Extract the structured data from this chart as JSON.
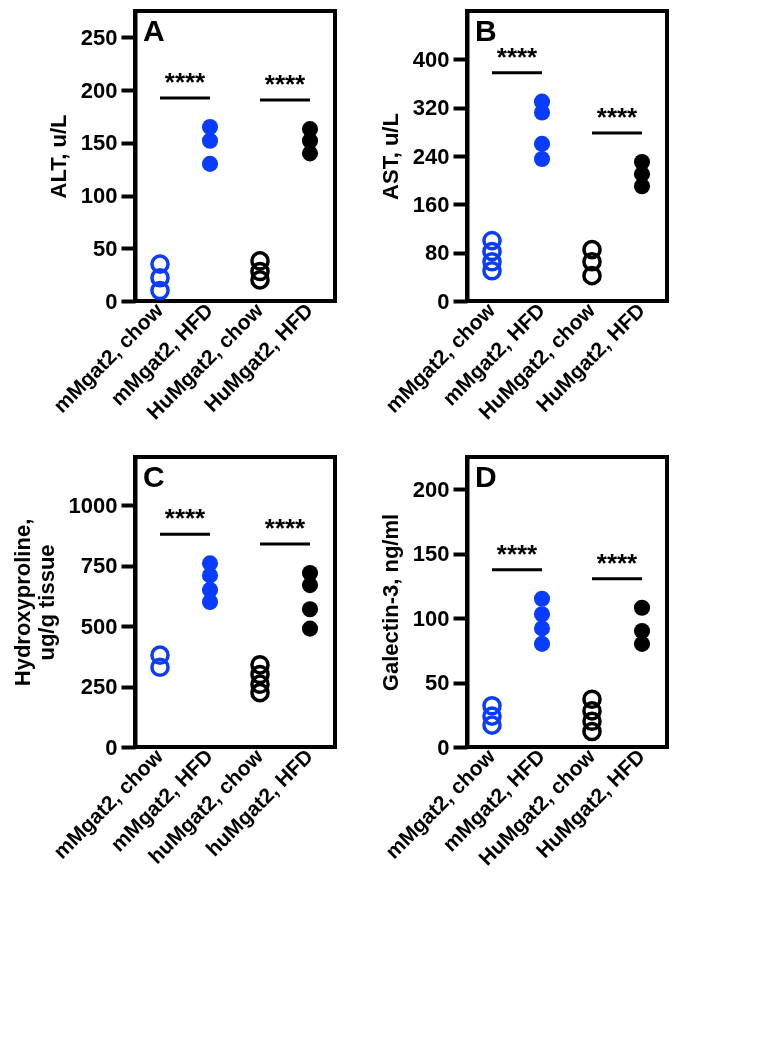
{
  "chart_data": [
    {
      "type": "scatter",
      "title": "A",
      "ylabel": "ALT, u/L",
      "categories": [
        "mMgat2, chow",
        "mMgat2, HFD",
        "HuMgat2, chow",
        "HuMgat2, HFD"
      ],
      "ylim": [
        0,
        275
      ],
      "yticks": [
        0,
        50,
        100,
        150,
        200,
        250
      ],
      "marker": "circle",
      "annotations": [
        "****",
        "****"
      ],
      "series": [
        {
          "color": "#0a3cff",
          "x": [
            "mMgat2, chow",
            "mMgat2, chow",
            "mMgat2, chow"
          ],
          "values": [
            35,
            22,
            10
          ]
        },
        {
          "color": "#0a3cff",
          "x": [
            "mMgat2, HFD",
            "mMgat2, HFD",
            "mMgat2, HFD"
          ],
          "values": [
            165,
            152,
            130
          ]
        },
        {
          "color": "#000000",
          "x": [
            "HuMgat2, chow",
            "HuMgat2, chow",
            "HuMgat2, chow"
          ],
          "values": [
            38,
            28,
            20
          ]
        },
        {
          "color": "#000000",
          "x": [
            "HuMgat2, HFD",
            "HuMgat2, HFD",
            "HuMgat2, HFD"
          ],
          "values": [
            163,
            152,
            140
          ]
        }
      ]
    },
    {
      "type": "scatter",
      "title": "B",
      "ylabel": "AST, u/L",
      "categories": [
        "mMgat2, chow",
        "mMgat2, HFD",
        "HuMgat2, chow",
        "HuMgat2, HFD"
      ],
      "ylim": [
        0,
        480
      ],
      "yticks": [
        0,
        80,
        160,
        240,
        320,
        400
      ],
      "marker": "circle",
      "annotations": [
        "****",
        "****"
      ],
      "series": [
        {
          "color": "#0a3cff",
          "x": [
            "mMgat2, chow",
            "mMgat2, chow",
            "mMgat2, chow",
            "mMgat2, chow"
          ],
          "values": [
            100,
            82,
            65,
            50
          ]
        },
        {
          "color": "#0a3cff",
          "x": [
            "mMgat2, HFD",
            "mMgat2, HFD",
            "mMgat2, HFD",
            "mMgat2, HFD"
          ],
          "values": [
            330,
            312,
            260,
            235
          ]
        },
        {
          "color": "#000000",
          "x": [
            "HuMgat2, chow",
            "HuMgat2, chow",
            "HuMgat2, chow"
          ],
          "values": [
            85,
            65,
            42
          ]
        },
        {
          "color": "#000000",
          "x": [
            "HuMgat2, HFD",
            "HuMgat2, HFD",
            "HuMgat2, HFD"
          ],
          "values": [
            230,
            210,
            190
          ]
        }
      ]
    },
    {
      "type": "scatter",
      "title": "C",
      "ylabel": "Hydroxyproline,\nug/g tissue",
      "categories": [
        "mMgat2, chow",
        "mMgat2, HFD",
        "huMgat2, chow",
        "huMgat2, HFD"
      ],
      "ylim": [
        0,
        1200
      ],
      "yticks": [
        0,
        250,
        500,
        750,
        {
          "value": 1000,
          "label": "1000"
        }
      ],
      "marker": "circle",
      "annotations": [
        "****",
        "****"
      ],
      "series": [
        {
          "color": "#0a3cff",
          "x": [
            "mMgat2, chow",
            "mMgat2, chow"
          ],
          "values": [
            380,
            330
          ]
        },
        {
          "color": "#0a3cff",
          "x": [
            "mMgat2, HFD",
            "mMgat2, HFD",
            "mMgat2, HFD",
            "mMgat2, HFD"
          ],
          "values": [
            760,
            710,
            650,
            600
          ]
        },
        {
          "color": "#000000",
          "x": [
            "huMgat2, chow",
            "huMgat2, chow",
            "huMgat2, chow",
            "huMgat2, chow"
          ],
          "values": [
            340,
            300,
            260,
            225
          ]
        },
        {
          "color": "#000000",
          "x": [
            "huMgat2, HFD",
            "huMgat2, HFD",
            "huMgat2, HFD",
            "huMgat2, HFD"
          ],
          "values": [
            720,
            670,
            570,
            490
          ]
        }
      ]
    },
    {
      "type": "scatter",
      "title": "D",
      "ylabel": "Galectin-3, ng/ml",
      "categories": [
        "mMgat2, chow",
        "mMgat2, HFD",
        "HuMgat2, chow",
        "HuMgat2, HFD"
      ],
      "ylim": [
        0,
        225
      ],
      "yticks": [
        0,
        50,
        100,
        150,
        200
      ],
      "marker": "circle",
      "annotations": [
        "****",
        "****"
      ],
      "series": [
        {
          "color": "#0a3cff",
          "x": [
            "mMgat2, chow",
            "mMgat2, chow",
            "mMgat2, chow"
          ],
          "values": [
            32,
            24,
            17
          ]
        },
        {
          "color": "#0a3cff",
          "x": [
            "mMgat2, HFD",
            "mMgat2, HFD",
            "mMgat2, HFD",
            "mMgat2, HFD"
          ],
          "values": [
            115,
            103,
            92,
            80
          ]
        },
        {
          "color": "#000000",
          "x": [
            "HuMgat2, chow",
            "HuMgat2, chow",
            "HuMgat2, chow",
            "HuMgat2, chow"
          ],
          "values": [
            37,
            28,
            20,
            12
          ]
        },
        {
          "color": "#000000",
          "x": [
            "HuMgat2, HFD",
            "HuMgat2, HFD",
            "HuMgat2, HFD"
          ],
          "values": [
            108,
            90,
            80
          ]
        }
      ]
    }
  ]
}
